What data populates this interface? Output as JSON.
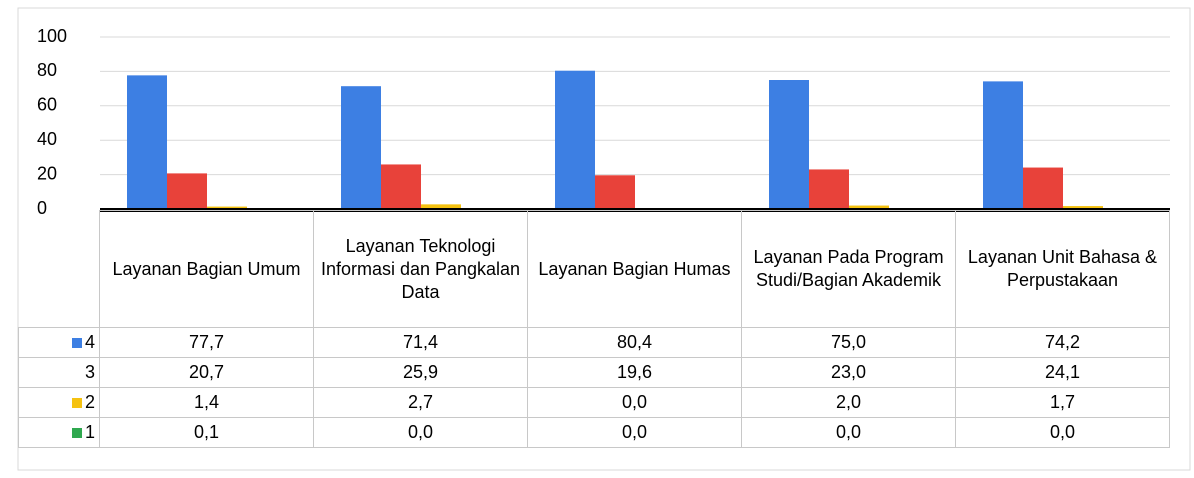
{
  "chart_data": {
    "type": "bar",
    "categories": [
      "Layanan Bagian Umum",
      "Layanan Teknologi Informasi dan Pangkalan Data",
      "Layanan Bagian Humas",
      "Layanan Pada Program Studi/Bagian Akademik",
      "Layanan Unit Bahasa & Perpustakaan"
    ],
    "series": [
      {
        "name": "4",
        "color": "#3d7fe3",
        "values": [
          77.7,
          71.4,
          80.4,
          75.0,
          74.2
        ],
        "value_labels": [
          "77,7",
          "71,4",
          "80,4",
          "75,0",
          "74,2"
        ]
      },
      {
        "name": "3",
        "color": "#e8423a",
        "values": [
          20.7,
          25.9,
          19.6,
          23.0,
          24.1
        ],
        "value_labels": [
          "20,7",
          "25,9",
          "19,6",
          "23,0",
          "24,1"
        ]
      },
      {
        "name": "2",
        "color": "#f5c211",
        "values": [
          1.4,
          2.7,
          0.0,
          2.0,
          1.7
        ],
        "value_labels": [
          "1,4",
          "2,7",
          "0,0",
          "2,0",
          "1,7"
        ]
      },
      {
        "name": "1",
        "color": "#2fa84f",
        "values": [
          0.1,
          0.0,
          0.0,
          0.0,
          0.0
        ],
        "value_labels": [
          "0,1",
          "0,0",
          "0,0",
          "0,0",
          "0,0"
        ]
      }
    ],
    "ylim": [
      0,
      100
    ],
    "yticks": [
      0,
      20,
      40,
      60,
      80,
      100
    ],
    "grid": true
  }
}
